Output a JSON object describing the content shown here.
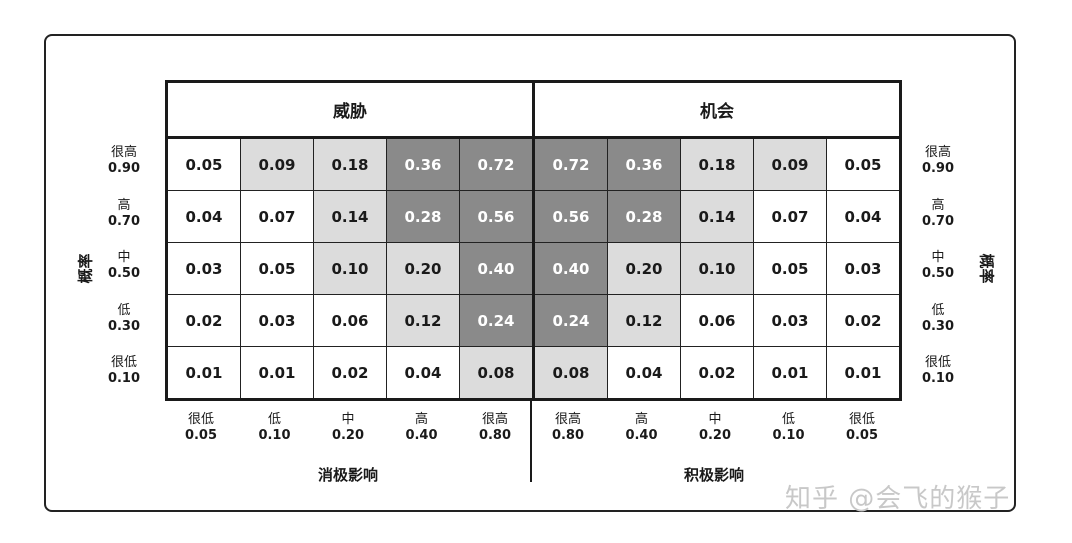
{
  "headers": {
    "threat": "威胁",
    "opportunity": "机会"
  },
  "colors": {
    "low": "#ffffff",
    "medium": "#dcdcdc",
    "high": "#8a8a8a"
  },
  "probability_title": "概率",
  "probability_levels": [
    {
      "label": "很高",
      "value": "0.90"
    },
    {
      "label": "高",
      "value": "0.70"
    },
    {
      "label": "中",
      "value": "0.50"
    },
    {
      "label": "低",
      "value": "0.30"
    },
    {
      "label": "很低",
      "value": "0.10"
    }
  ],
  "threat_impact": {
    "title": "消极影响",
    "levels": [
      {
        "label": "很低",
        "value": "0.05"
      },
      {
        "label": "低",
        "value": "0.10"
      },
      {
        "label": "中",
        "value": "0.20"
      },
      {
        "label": "高",
        "value": "0.40"
      },
      {
        "label": "很高",
        "value": "0.80"
      }
    ]
  },
  "opportunity_impact": {
    "title": "积极影响",
    "levels": [
      {
        "label": "很高",
        "value": "0.80"
      },
      {
        "label": "高",
        "value": "0.40"
      },
      {
        "label": "中",
        "value": "0.20"
      },
      {
        "label": "低",
        "value": "0.10"
      },
      {
        "label": "很低",
        "value": "0.05"
      }
    ]
  },
  "rows": [
    {
      "values": [
        "0.05",
        "0.09",
        "0.18",
        "0.36",
        "0.72",
        "0.72",
        "0.36",
        "0.18",
        "0.09",
        "0.05"
      ],
      "shade": [
        "W",
        "L",
        "L",
        "D",
        "D",
        "D",
        "D",
        "L",
        "L",
        "W"
      ]
    },
    {
      "values": [
        "0.04",
        "0.07",
        "0.14",
        "0.28",
        "0.56",
        "0.56",
        "0.28",
        "0.14",
        "0.07",
        "0.04"
      ],
      "shade": [
        "W",
        "W",
        "L",
        "D",
        "D",
        "D",
        "D",
        "L",
        "W",
        "W"
      ]
    },
    {
      "values": [
        "0.03",
        "0.05",
        "0.10",
        "0.20",
        "0.40",
        "0.40",
        "0.20",
        "0.10",
        "0.05",
        "0.03"
      ],
      "shade": [
        "W",
        "W",
        "L",
        "L",
        "D",
        "D",
        "L",
        "L",
        "W",
        "W"
      ]
    },
    {
      "values": [
        "0.02",
        "0.03",
        "0.06",
        "0.12",
        "0.24",
        "0.24",
        "0.12",
        "0.06",
        "0.03",
        "0.02"
      ],
      "shade": [
        "W",
        "W",
        "W",
        "L",
        "D",
        "D",
        "L",
        "W",
        "W",
        "W"
      ]
    },
    {
      "values": [
        "0.01",
        "0.01",
        "0.02",
        "0.04",
        "0.08",
        "0.08",
        "0.04",
        "0.02",
        "0.01",
        "0.01"
      ],
      "shade": [
        "W",
        "W",
        "W",
        "W",
        "L",
        "L",
        "W",
        "W",
        "W",
        "W"
      ]
    }
  ],
  "watermark": "知乎 @会飞的猴子"
}
